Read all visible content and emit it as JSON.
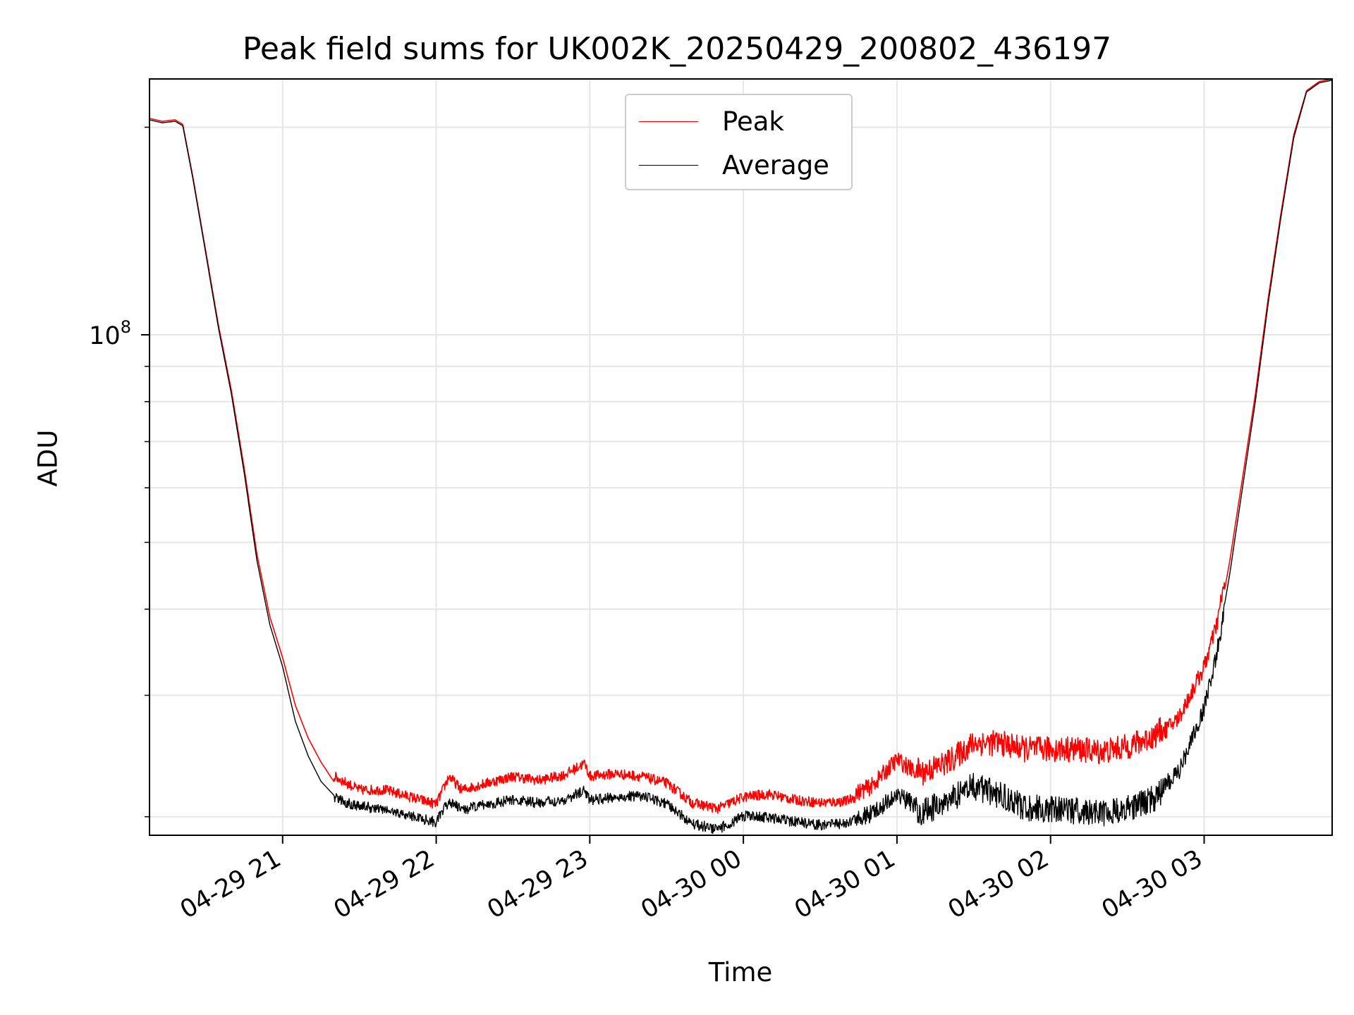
{
  "chart_data": {
    "type": "line",
    "title": "Peak field sums for UK002K_20250429_200802_436197",
    "xlabel": "Time",
    "ylabel": "ADU",
    "xlim": [
      "2025-04-29 20:08",
      "2025-04-30 03:50"
    ],
    "ylim": [
      18800000,
      235000000
    ],
    "yscale": "log",
    "grid": true,
    "legend_position": "top-center",
    "x_ticks": [
      "04-29 21",
      "04-29 22",
      "04-29 23",
      "04-30 00",
      "04-30 01",
      "04-30 02",
      "04-30 03"
    ],
    "y_ticks": [
      {
        "value": 100000000,
        "base": "10",
        "exp": "8"
      }
    ],
    "series": [
      {
        "name": "Peak",
        "color": "#ff0000",
        "x": [
          "2025-04-29 20:08",
          "2025-04-29 20:13",
          "2025-04-29 20:18",
          "2025-04-29 20:21",
          "2025-04-29 20:25",
          "2025-04-29 20:30",
          "2025-04-29 20:35",
          "2025-04-29 20:40",
          "2025-04-29 20:45",
          "2025-04-29 20:50",
          "2025-04-29 20:55",
          "2025-04-29 21:00",
          "2025-04-29 21:05",
          "2025-04-29 21:10",
          "2025-04-29 21:15",
          "2025-04-29 21:20",
          "2025-04-29 21:25",
          "2025-04-29 21:30",
          "2025-04-29 21:40",
          "2025-04-29 21:50",
          "2025-04-29 22:00",
          "2025-04-29 22:05",
          "2025-04-29 22:10",
          "2025-04-29 22:20",
          "2025-04-29 22:30",
          "2025-04-29 22:40",
          "2025-04-29 22:50",
          "2025-04-29 22:58",
          "2025-04-29 23:00",
          "2025-04-29 23:10",
          "2025-04-29 23:20",
          "2025-04-29 23:30",
          "2025-04-29 23:40",
          "2025-04-29 23:50",
          "2025-04-30 00:00",
          "2025-04-30 00:10",
          "2025-04-30 00:20",
          "2025-04-30 00:30",
          "2025-04-30 00:40",
          "2025-04-30 00:50",
          "2025-04-30 01:00",
          "2025-04-30 01:10",
          "2025-04-30 01:20",
          "2025-04-30 01:30",
          "2025-04-30 01:40",
          "2025-04-30 01:50",
          "2025-04-30 02:00",
          "2025-04-30 02:10",
          "2025-04-30 02:20",
          "2025-04-30 02:30",
          "2025-04-30 02:40",
          "2025-04-30 02:50",
          "2025-04-30 03:00",
          "2025-04-30 03:05",
          "2025-04-30 03:10",
          "2025-04-30 03:15",
          "2025-04-30 03:20",
          "2025-04-30 03:25",
          "2025-04-30 03:30",
          "2025-04-30 03:35",
          "2025-04-30 03:40",
          "2025-04-30 03:45",
          "2025-04-30 03:50"
        ],
        "y": [
          206000000,
          204000000,
          205000000,
          202000000,
          169000000,
          132000000,
          103000000,
          83000000,
          64000000,
          48000000,
          39000000,
          34000000,
          29000000,
          26000000,
          24000000,
          22500000,
          22000000,
          21500000,
          21500000,
          21000000,
          20500000,
          22500000,
          21500000,
          22000000,
          22500000,
          22200000,
          22600000,
          23500000,
          22500000,
          22700000,
          22500000,
          22000000,
          20600000,
          20200000,
          21000000,
          21200000,
          20800000,
          20600000,
          20700000,
          21500000,
          23500000,
          22200000,
          23000000,
          24500000,
          24500000,
          24000000,
          24000000,
          24000000,
          23800000,
          24200000,
          25000000,
          27000000,
          32000000,
          37000000,
          47000000,
          62000000,
          82000000,
          113000000,
          150000000,
          195000000,
          226000000,
          233000000,
          235000000
        ]
      },
      {
        "name": "Average",
        "color": "#000000",
        "x": [
          "2025-04-29 20:08",
          "2025-04-29 20:13",
          "2025-04-29 20:18",
          "2025-04-29 20:21",
          "2025-04-29 20:25",
          "2025-04-29 20:30",
          "2025-04-29 20:35",
          "2025-04-29 20:40",
          "2025-04-29 20:45",
          "2025-04-29 20:50",
          "2025-04-29 20:55",
          "2025-04-29 21:00",
          "2025-04-29 21:05",
          "2025-04-29 21:10",
          "2025-04-29 21:15",
          "2025-04-29 21:20",
          "2025-04-29 21:25",
          "2025-04-29 21:30",
          "2025-04-29 21:40",
          "2025-04-29 21:50",
          "2025-04-29 22:00",
          "2025-04-29 22:05",
          "2025-04-29 22:10",
          "2025-04-29 22:20",
          "2025-04-29 22:30",
          "2025-04-29 22:40",
          "2025-04-29 22:50",
          "2025-04-29 22:58",
          "2025-04-29 23:00",
          "2025-04-29 23:10",
          "2025-04-29 23:20",
          "2025-04-29 23:30",
          "2025-04-29 23:40",
          "2025-04-29 23:50",
          "2025-04-30 00:00",
          "2025-04-30 00:10",
          "2025-04-30 00:20",
          "2025-04-30 00:30",
          "2025-04-30 00:40",
          "2025-04-30 00:50",
          "2025-04-30 01:00",
          "2025-04-30 01:10",
          "2025-04-30 01:20",
          "2025-04-30 01:30",
          "2025-04-30 01:40",
          "2025-04-30 01:50",
          "2025-04-30 02:00",
          "2025-04-30 02:10",
          "2025-04-30 02:20",
          "2025-04-30 02:30",
          "2025-04-30 02:40",
          "2025-04-30 02:50",
          "2025-04-30 03:00",
          "2025-04-30 03:05",
          "2025-04-30 03:10",
          "2025-04-30 03:15",
          "2025-04-30 03:20",
          "2025-04-30 03:25",
          "2025-04-30 03:30",
          "2025-04-30 03:35",
          "2025-04-30 03:40",
          "2025-04-30 03:45",
          "2025-04-30 03:50"
        ],
        "y": [
          205000000,
          203000000,
          204000000,
          201000000,
          168000000,
          131000000,
          102000000,
          82000000,
          63000000,
          47000000,
          38000000,
          33000000,
          27500000,
          24500000,
          22500000,
          21500000,
          21100000,
          20900000,
          20600000,
          20200000,
          19800000,
          21200000,
          20600000,
          21000000,
          21300000,
          21100000,
          21300000,
          22000000,
          21300000,
          21500000,
          21600000,
          21000000,
          19700000,
          19300000,
          20200000,
          20100000,
          19800000,
          19600000,
          19700000,
          20500000,
          21800000,
          20700000,
          21500000,
          22600000,
          21900000,
          21000000,
          20900000,
          20800000,
          20600000,
          20900000,
          21600000,
          23500000,
          29000000,
          35000000,
          45000000,
          60000000,
          80000000,
          111000000,
          148000000,
          193000000,
          225000000,
          232000000,
          234000000
        ]
      }
    ]
  }
}
